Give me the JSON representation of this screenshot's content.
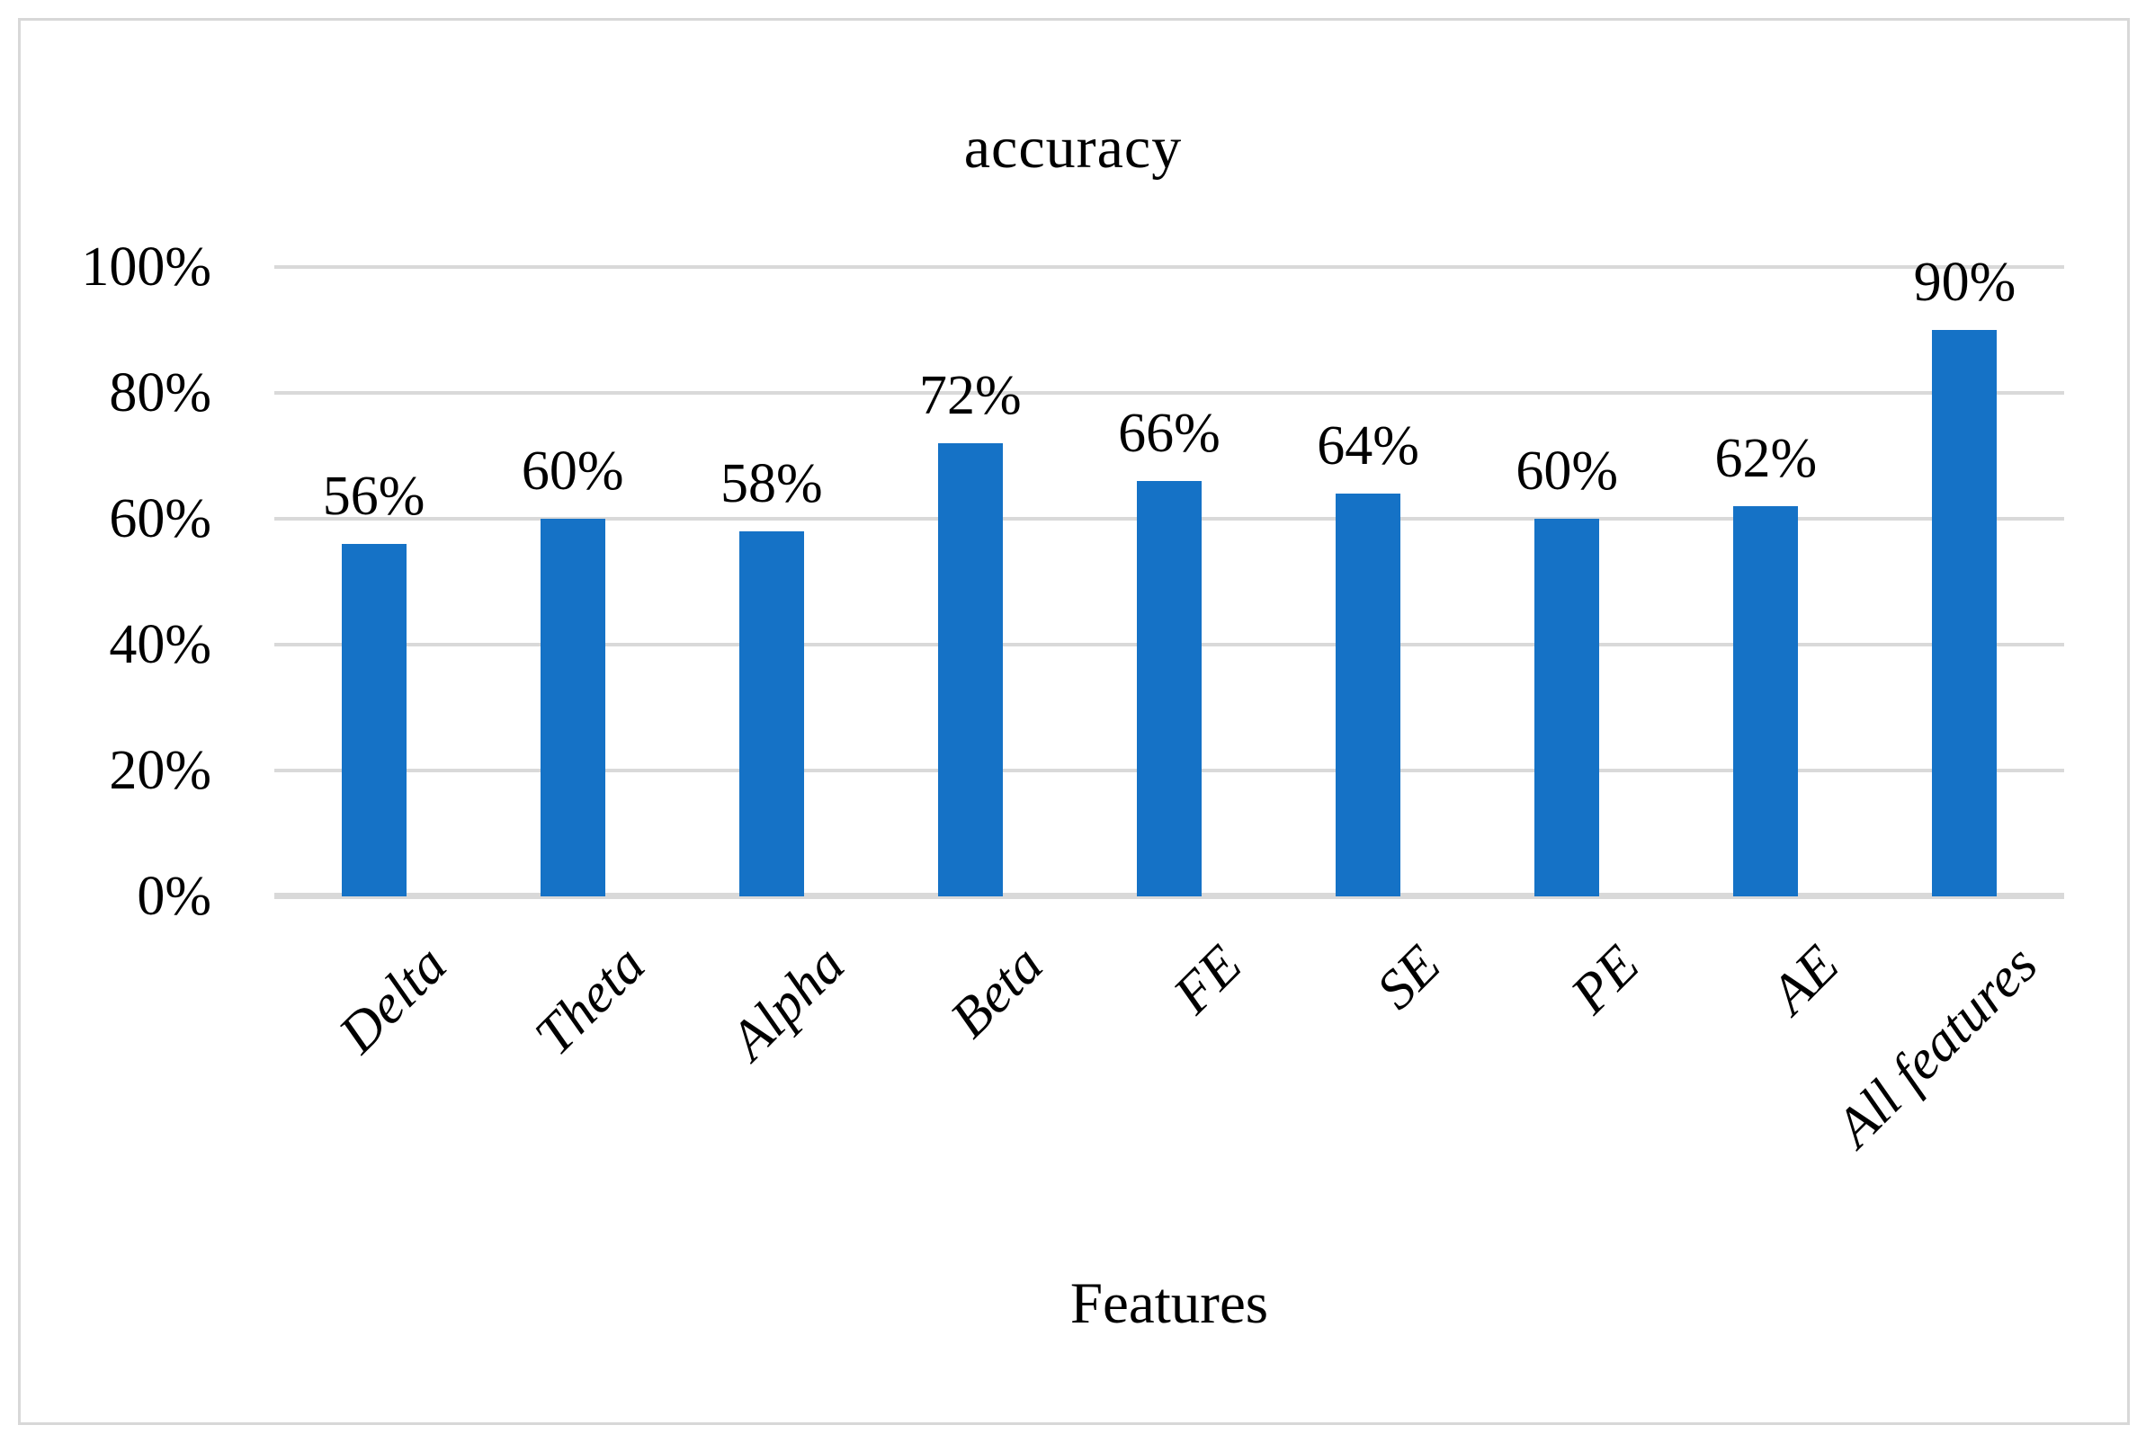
{
  "chart_data": {
    "type": "bar",
    "title": "accuracy",
    "xlabel": "Features",
    "ylabel": "",
    "categories": [
      "Delta",
      "Theta",
      "Alpha",
      "Beta",
      "FE",
      "SE",
      "PE",
      "AE",
      "All features"
    ],
    "values": [
      56,
      60,
      58,
      72,
      66,
      64,
      60,
      62,
      90
    ],
    "data_labels": [
      "56%",
      "60%",
      "58%",
      "72%",
      "66%",
      "64%",
      "60%",
      "62%",
      "90%"
    ],
    "ylim": [
      0,
      100
    ],
    "y_ticks": [
      {
        "value": 0,
        "label": "0%"
      },
      {
        "value": 20,
        "label": "20%"
      },
      {
        "value": 40,
        "label": "40%"
      },
      {
        "value": 60,
        "label": "60%"
      },
      {
        "value": 80,
        "label": "80%"
      },
      {
        "value": 100,
        "label": "100%"
      }
    ],
    "grid": true,
    "legend": "none",
    "colors": {
      "bar": "#1572C6",
      "gridline": "#D9D9D9",
      "axis_line": "#D9D9D9",
      "frame_border": "#D8D8D8",
      "text": "#000000",
      "background": "#FFFFFF"
    }
  }
}
